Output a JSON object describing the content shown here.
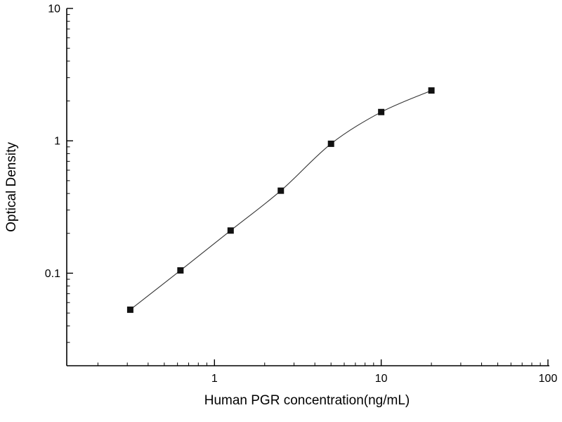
{
  "chart_data": {
    "type": "scatter",
    "title": "",
    "xlabel": "Human PGR concentration(ng/mL)",
    "ylabel": "Optical Density",
    "x": [
      0.3125,
      0.625,
      1.25,
      2.5,
      5,
      10,
      20
    ],
    "y": [
      0.053,
      0.105,
      0.21,
      0.42,
      0.95,
      1.65,
      2.4
    ],
    "x_scale": "log",
    "y_scale": "log",
    "xlim": [
      0.13,
      100
    ],
    "ylim": [
      0.02,
      10
    ],
    "x_ticks": [
      {
        "value": 1,
        "label": "1"
      },
      {
        "value": 10,
        "label": "10"
      },
      {
        "value": 100,
        "label": "100"
      }
    ],
    "y_ticks": [
      {
        "value": 0.1,
        "label": "0.1"
      },
      {
        "value": 1,
        "label": "1"
      },
      {
        "value": 10,
        "label": "10"
      }
    ],
    "grid": false,
    "legend": false,
    "marker": "filled-square",
    "line": "smooth-fit",
    "colors": {
      "marker": "#111111",
      "line": "#333333",
      "axis": "#000000",
      "background": "#ffffff"
    }
  }
}
